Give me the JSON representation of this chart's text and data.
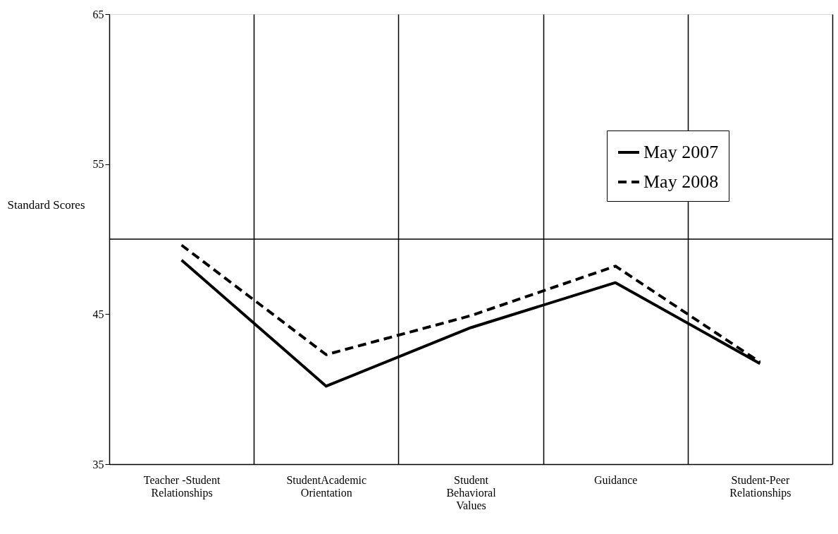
{
  "chart_data": {
    "type": "line",
    "categories": [
      "Teacher -Student Relationships",
      "StudentAcademic Orientation",
      "Student Behavioral Values",
      "Guidance",
      "Student-Peer Relationships"
    ],
    "series": [
      {
        "name": "May 2007",
        "color": "#000000",
        "line_style": "solid",
        "values": [
          48.6,
          40.2,
          44.1,
          47.1,
          41.7
        ]
      },
      {
        "name": "May 2008",
        "color": "#000000",
        "line_style": "dashed",
        "values": [
          49.6,
          42.3,
          44.9,
          48.2,
          41.8
        ]
      }
    ],
    "ylabel": "Standard Scores",
    "ylim": [
      35,
      65
    ],
    "yticks": [
      35,
      45,
      55,
      65
    ],
    "ref_lines": [
      {
        "axis": "y",
        "value": 50,
        "label": null,
        "color": "#000000"
      }
    ],
    "grid": "x",
    "legend": "top right",
    "marker": "none"
  }
}
